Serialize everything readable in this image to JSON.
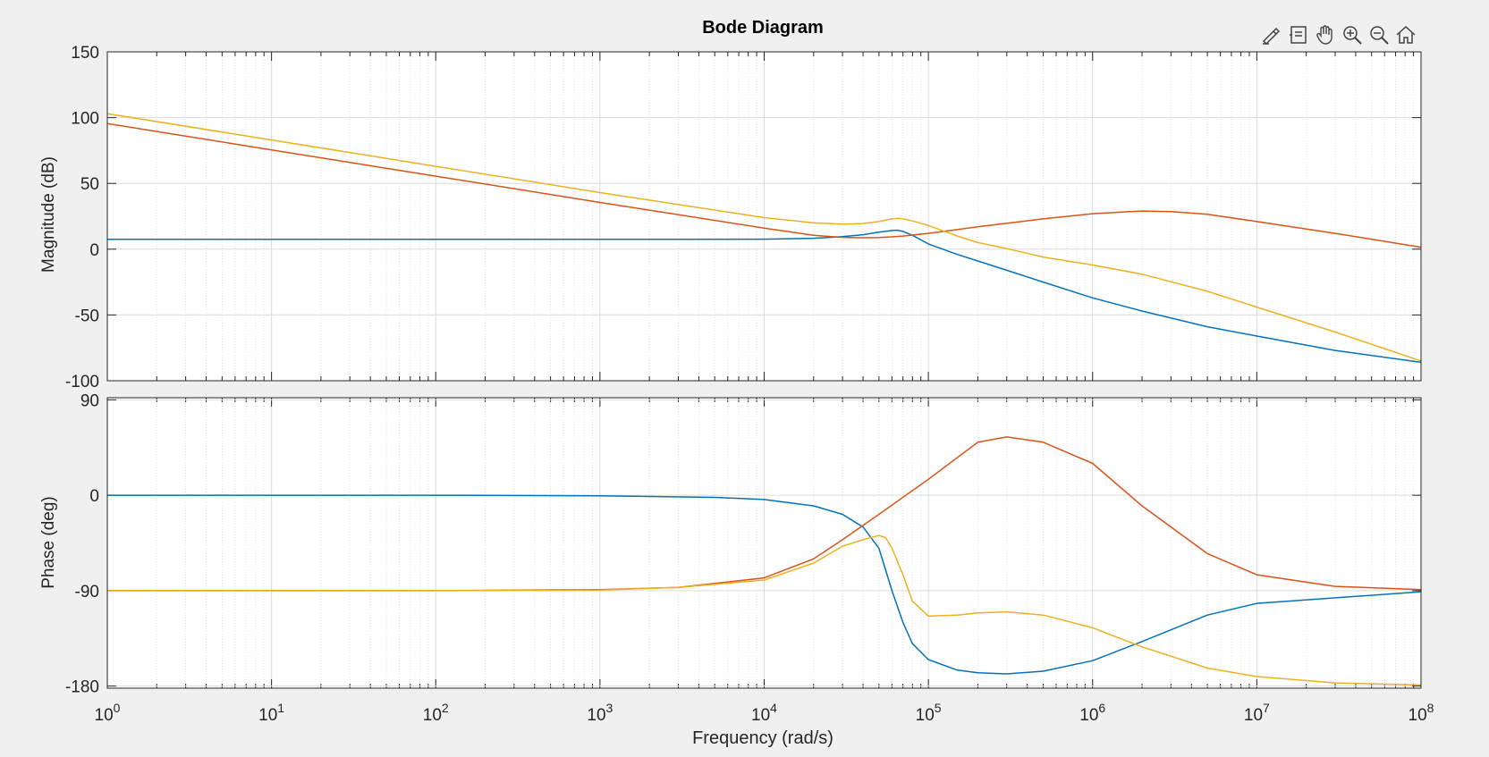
{
  "chart_data": {
    "type": "line",
    "title": "Bode Diagram",
    "xlabel": "Frequency  (rad/s)",
    "xscale": "log",
    "xlim": [
      1,
      100000000
    ],
    "x_ticks": [
      {
        "value": 1,
        "base": "10",
        "exp": "0"
      },
      {
        "value": 10,
        "base": "10",
        "exp": "1"
      },
      {
        "value": 100,
        "base": "10",
        "exp": "2"
      },
      {
        "value": 1000,
        "base": "10",
        "exp": "3"
      },
      {
        "value": 10000,
        "base": "10",
        "exp": "4"
      },
      {
        "value": 100000,
        "base": "10",
        "exp": "5"
      },
      {
        "value": 1000000,
        "base": "10",
        "exp": "6"
      },
      {
        "value": 10000000,
        "base": "10",
        "exp": "7"
      },
      {
        "value": 100000000,
        "base": "10",
        "exp": "8"
      }
    ],
    "grid": true,
    "colors": {
      "series1": "#0072BD",
      "series2": "#D95319",
      "series3": "#EDB120"
    },
    "magnitude": {
      "ylabel": "Magnitude (dB)",
      "ylim": [
        -100,
        150
      ],
      "yticks": [
        150,
        100,
        50,
        0,
        -50,
        -100
      ],
      "series": [
        {
          "color": "#0072BD",
          "points": [
            [
              1,
              7.5
            ],
            [
              10,
              7.5
            ],
            [
              100,
              7.5
            ],
            [
              1000,
              7.5
            ],
            [
              10000,
              7.6
            ],
            [
              20000,
              8.3
            ],
            [
              30000,
              9.5
            ],
            [
              40000,
              11
            ],
            [
              50000,
              13
            ],
            [
              60000,
              14.2
            ],
            [
              65000,
              14.4
            ],
            [
              70000,
              13.5
            ],
            [
              80000,
              10.5
            ],
            [
              100000,
              4
            ],
            [
              150000,
              -4
            ],
            [
              200000,
              -9
            ],
            [
              300000,
              -16
            ],
            [
              500000,
              -25
            ],
            [
              1000000,
              -37
            ],
            [
              2000000,
              -47
            ],
            [
              5000000,
              -59
            ],
            [
              10000000,
              -66
            ],
            [
              30000000,
              -77
            ],
            [
              100000000,
              -86
            ]
          ]
        },
        {
          "color": "#D95319",
          "points": [
            [
              1,
              95.5
            ],
            [
              10,
              75.5
            ],
            [
              100,
              55.5
            ],
            [
              1000,
              35.5
            ],
            [
              10000,
              16
            ],
            [
              20000,
              10.5
            ],
            [
              30000,
              9
            ],
            [
              40000,
              8.7
            ],
            [
              50000,
              8.9
            ],
            [
              60000,
              9.4
            ],
            [
              70000,
              10
            ],
            [
              100000,
              12
            ],
            [
              200000,
              17
            ],
            [
              500000,
              23
            ],
            [
              1000000,
              27
            ],
            [
              2000000,
              29
            ],
            [
              3000000,
              28.5
            ],
            [
              5000000,
              26.5
            ],
            [
              10000000,
              21
            ],
            [
              30000000,
              12
            ],
            [
              100000000,
              1.5
            ]
          ]
        },
        {
          "color": "#EDB120",
          "points": [
            [
              1,
              103
            ],
            [
              10,
              83
            ],
            [
              100,
              63
            ],
            [
              1000,
              43
            ],
            [
              10000,
              24
            ],
            [
              20000,
              20
            ],
            [
              30000,
              19
            ],
            [
              40000,
              19.5
            ],
            [
              50000,
              21
            ],
            [
              60000,
              23
            ],
            [
              65000,
              23.5
            ],
            [
              70000,
              23
            ],
            [
              80000,
              21.5
            ],
            [
              100000,
              18
            ],
            [
              150000,
              10
            ],
            [
              200000,
              5
            ],
            [
              300000,
              0.5
            ],
            [
              500000,
              -6
            ],
            [
              1000000,
              -12
            ],
            [
              2000000,
              -19
            ],
            [
              5000000,
              -32
            ],
            [
              10000000,
              -44
            ],
            [
              30000000,
              -63
            ],
            [
              100000000,
              -85
            ]
          ]
        }
      ]
    },
    "phase": {
      "ylabel": "Phase (deg)",
      "ylim": [
        -182,
        92
      ],
      "yticks": [
        90,
        0,
        -90,
        -180
      ],
      "series": [
        {
          "color": "#0072BD",
          "points": [
            [
              1,
              0
            ],
            [
              10,
              0
            ],
            [
              100,
              0
            ],
            [
              1000,
              -0.5
            ],
            [
              5000,
              -2
            ],
            [
              10000,
              -4
            ],
            [
              20000,
              -10
            ],
            [
              30000,
              -18
            ],
            [
              40000,
              -30
            ],
            [
              50000,
              -50
            ],
            [
              60000,
              -90
            ],
            [
              70000,
              -120
            ],
            [
              80000,
              -140
            ],
            [
              100000,
              -155
            ],
            [
              150000,
              -165
            ],
            [
              200000,
              -167.5
            ],
            [
              300000,
              -168.5
            ],
            [
              500000,
              -166
            ],
            [
              1000000,
              -156
            ],
            [
              2000000,
              -138
            ],
            [
              5000000,
              -113
            ],
            [
              10000000,
              -102
            ],
            [
              30000,
              -18
            ],
            [
              100000000,
              -91
            ]
          ]
        },
        {
          "color": "#D95319",
          "points": [
            [
              1,
              -90
            ],
            [
              100,
              -90
            ],
            [
              1000,
              -89
            ],
            [
              3000,
              -87
            ],
            [
              10000,
              -78
            ],
            [
              20000,
              -60
            ],
            [
              30000,
              -42
            ],
            [
              50000,
              -18
            ],
            [
              100000,
              15
            ],
            [
              200000,
              50
            ],
            [
              300000,
              55
            ],
            [
              500000,
              50
            ],
            [
              1000000,
              30
            ],
            [
              2000000,
              -10
            ],
            [
              5000000,
              -55
            ],
            [
              10000000,
              -75
            ],
            [
              30000000,
              -86
            ],
            [
              100000000,
              -89
            ]
          ]
        },
        {
          "color": "#EDB120",
          "points": [
            [
              1,
              -90
            ],
            [
              100,
              -90
            ],
            [
              1000,
              -89.5
            ],
            [
              3000,
              -87
            ],
            [
              10000,
              -80
            ],
            [
              20000,
              -64
            ],
            [
              30000,
              -48
            ],
            [
              40000,
              -42
            ],
            [
              50000,
              -38
            ],
            [
              55000,
              -40
            ],
            [
              60000,
              -50
            ],
            [
              70000,
              -75
            ],
            [
              80000,
              -100
            ],
            [
              100000,
              -114
            ],
            [
              150000,
              -113
            ],
            [
              200000,
              -111
            ],
            [
              300000,
              -110
            ],
            [
              500000,
              -113
            ],
            [
              1000000,
              -125
            ],
            [
              2000000,
              -143
            ],
            [
              5000000,
              -163
            ],
            [
              10000000,
              -171
            ],
            [
              30000000,
              -177
            ],
            [
              100000000,
              -179
            ]
          ]
        }
      ]
    }
  },
  "toolbar": {
    "icons": [
      "brush-icon",
      "datatip-icon",
      "pan-hand-icon",
      "zoom-in-icon",
      "zoom-out-icon",
      "home-icon"
    ]
  }
}
